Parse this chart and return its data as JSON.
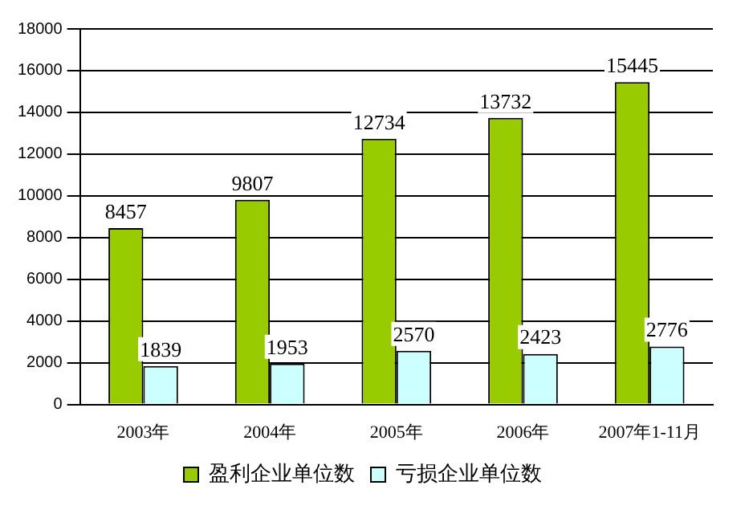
{
  "chart_data": {
    "type": "bar",
    "categories": [
      "2003年",
      "2004年",
      "2005年",
      "2006年",
      "2007年1-11月"
    ],
    "series": [
      {
        "name": "盈利企业单位数",
        "color": "#99cc00",
        "values": [
          8457,
          9807,
          12734,
          13732,
          15445
        ]
      },
      {
        "name": "亏损企业单位数",
        "color": "#ccffff",
        "values": [
          1839,
          1953,
          2570,
          2423,
          2776
        ]
      }
    ],
    "ylim": [
      0,
      18000
    ],
    "yticks": [
      0,
      2000,
      4000,
      6000,
      8000,
      10000,
      12000,
      14000,
      16000,
      18000
    ],
    "grid": "y",
    "legend": "bottom",
    "data_labels": true
  }
}
